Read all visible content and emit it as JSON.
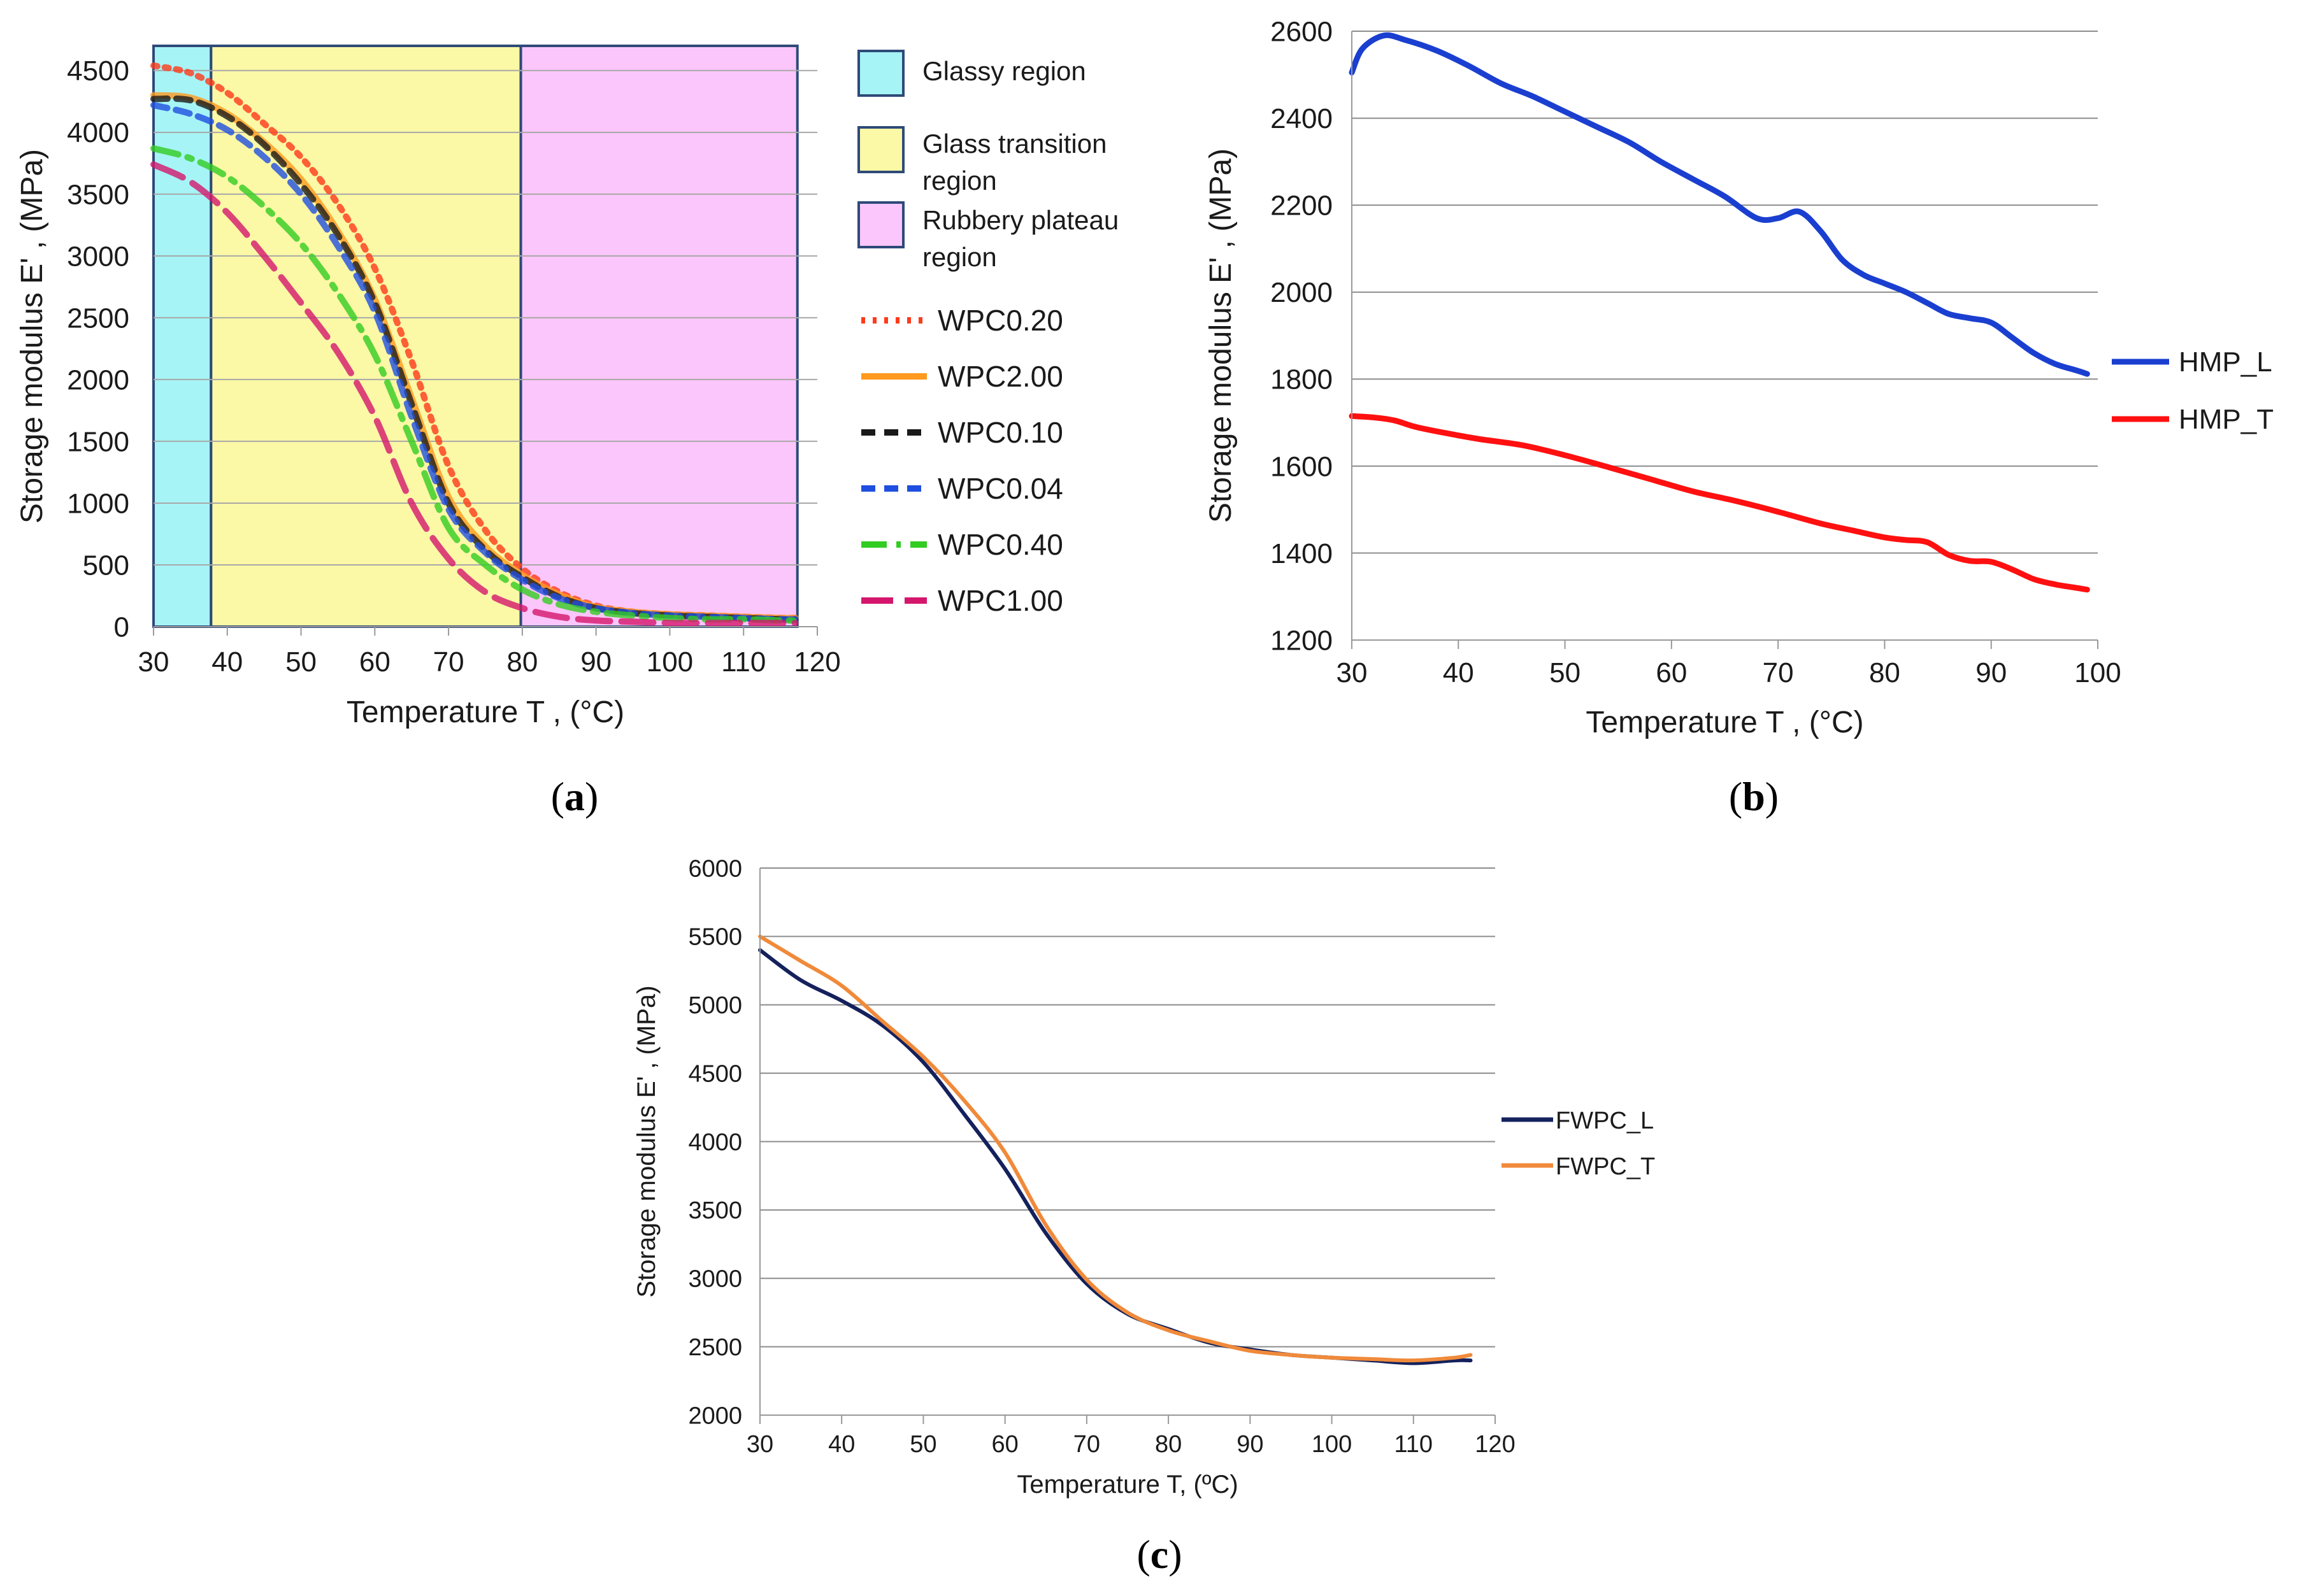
{
  "chart_data": [
    {
      "id": "a",
      "caption_letter": "a",
      "type": "line",
      "xlabel": "Temperature  T , (°C)",
      "ylabel": "Storage modulus E' , (MPa)",
      "xlim": [
        30,
        120
      ],
      "ylim": [
        0,
        4700
      ],
      "xticks": [
        30,
        40,
        50,
        60,
        70,
        80,
        90,
        100,
        110,
        120
      ],
      "yticks": [
        0,
        500,
        1000,
        1500,
        2000,
        2500,
        3000,
        3500,
        4000,
        4500
      ],
      "grid": true,
      "regions": [
        {
          "name": "Glassy region",
          "from": 30,
          "to": 37.8,
          "color": "#a6f4f6"
        },
        {
          "name": "Glass transition region",
          "from": 37.8,
          "to": 79.8,
          "color": "#fbf8a6"
        },
        {
          "name": "Rubbery plateau region",
          "from": 79.8,
          "to": 117.3,
          "color": "#fbc6fb"
        }
      ],
      "legend_regions": [
        "Glassy region",
        "Glass transition\nregion",
        "Rubbery plateau\nregion"
      ],
      "series": [
        {
          "name": "WPC0.20",
          "color": "#ff3a1a",
          "dash": "dotted",
          "x": [
            30,
            35,
            40,
            45,
            50,
            55,
            60,
            65,
            70,
            75,
            80,
            85,
            90,
            95,
            100,
            105,
            110,
            115,
            117
          ],
          "y": [
            4540,
            4480,
            4320,
            4070,
            3800,
            3420,
            2900,
            2150,
            1300,
            780,
            470,
            280,
            170,
            120,
            100,
            90,
            80,
            70,
            70
          ]
        },
        {
          "name": "WPC2.00",
          "color": "#ff9a1e",
          "dash": "solid",
          "x": [
            30,
            35,
            40,
            45,
            50,
            55,
            60,
            65,
            70,
            75,
            80,
            85,
            90,
            95,
            100,
            105,
            110,
            115,
            117
          ],
          "y": [
            4300,
            4280,
            4150,
            3920,
            3620,
            3200,
            2650,
            1850,
            1050,
            650,
            420,
            260,
            160,
            120,
            100,
            90,
            80,
            70,
            70
          ]
        },
        {
          "name": "WPC0.10",
          "color": "#1a1a1a",
          "dash": "dashed",
          "x": [
            30,
            35,
            40,
            45,
            50,
            55,
            60,
            65,
            70,
            75,
            80,
            85,
            90,
            95,
            100,
            105,
            110,
            115,
            117
          ],
          "y": [
            4270,
            4260,
            4130,
            3900,
            3580,
            3170,
            2620,
            1800,
            1000,
            620,
            400,
            240,
            150,
            110,
            90,
            80,
            70,
            60,
            60
          ]
        },
        {
          "name": "WPC0.04",
          "color": "#1f4fe0",
          "dash": "dashed",
          "x": [
            30,
            35,
            40,
            45,
            50,
            55,
            60,
            65,
            70,
            75,
            80,
            85,
            90,
            95,
            100,
            105,
            110,
            115,
            117
          ],
          "y": [
            4220,
            4150,
            4020,
            3800,
            3500,
            3080,
            2550,
            1700,
            950,
            600,
            380,
            230,
            150,
            110,
            90,
            80,
            70,
            60,
            60
          ]
        },
        {
          "name": "WPC0.40",
          "color": "#33cc22",
          "dash": "dashdot",
          "x": [
            30,
            35,
            40,
            45,
            50,
            55,
            60,
            65,
            70,
            75,
            80,
            85,
            90,
            95,
            100,
            105,
            110,
            115,
            117
          ],
          "y": [
            3870,
            3790,
            3640,
            3400,
            3100,
            2700,
            2200,
            1500,
            800,
            500,
            300,
            180,
            120,
            90,
            70,
            60,
            60,
            50,
            50
          ]
        },
        {
          "name": "WPC1.00",
          "color": "#d4176d",
          "dash": "longdash",
          "x": [
            30,
            35,
            40,
            45,
            50,
            55,
            60,
            65,
            70,
            75,
            80,
            85,
            90,
            95,
            100,
            105,
            110,
            115,
            117
          ],
          "y": [
            3740,
            3600,
            3350,
            3000,
            2620,
            2220,
            1700,
            1000,
            550,
            280,
            150,
            80,
            50,
            40,
            30,
            30,
            30,
            30,
            30
          ]
        }
      ]
    },
    {
      "id": "b",
      "caption_letter": "b",
      "type": "line",
      "xlabel": "Temperature T , (°C)",
      "ylabel": "Storage modulus E' , (MPa)",
      "xlim": [
        30,
        100
      ],
      "ylim": [
        1200,
        2600
      ],
      "xticks": [
        30,
        40,
        50,
        60,
        70,
        80,
        90,
        100
      ],
      "yticks": [
        1200,
        1400,
        1600,
        1800,
        2000,
        2200,
        2400,
        2600
      ],
      "grid": true,
      "series": [
        {
          "name": "HMP_L",
          "color": "#1a3fd0",
          "x": [
            30,
            31,
            33,
            35,
            38,
            41,
            44,
            47,
            50,
            53,
            56,
            59,
            62,
            65,
            68,
            70,
            72,
            74,
            76,
            78,
            80,
            82,
            84,
            86,
            88,
            90,
            92,
            94,
            96,
            98,
            99
          ],
          "y": [
            2505,
            2560,
            2590,
            2580,
            2555,
            2520,
            2480,
            2450,
            2415,
            2380,
            2345,
            2300,
            2260,
            2220,
            2170,
            2170,
            2185,
            2140,
            2075,
            2040,
            2020,
            2000,
            1975,
            1950,
            1940,
            1930,
            1895,
            1860,
            1835,
            1820,
            1812
          ]
        },
        {
          "name": "HMP_T",
          "color": "#ff1010",
          "x": [
            30,
            32,
            34,
            36,
            39,
            42,
            46,
            50,
            54,
            58,
            62,
            66,
            70,
            74,
            77,
            80,
            82,
            84,
            86,
            88,
            90,
            92,
            94,
            96,
            98,
            99
          ],
          "y": [
            1715,
            1712,
            1705,
            1690,
            1675,
            1662,
            1648,
            1625,
            1598,
            1570,
            1542,
            1520,
            1495,
            1468,
            1452,
            1436,
            1430,
            1425,
            1396,
            1382,
            1380,
            1362,
            1340,
            1328,
            1320,
            1316
          ]
        }
      ]
    },
    {
      "id": "c",
      "caption_letter": "c",
      "type": "line",
      "xlabel": "Temperature  T, (ºC)",
      "ylabel": "Storage modulus E' , (MPa)",
      "xlim": [
        30,
        120
      ],
      "ylim": [
        2000,
        6000
      ],
      "xticks": [
        30,
        40,
        50,
        60,
        70,
        80,
        90,
        100,
        110,
        120
      ],
      "yticks": [
        2000,
        2500,
        3000,
        3500,
        4000,
        4500,
        5000,
        5500,
        6000
      ],
      "grid": true,
      "series": [
        {
          "name": "FWPC_L",
          "color": "#14215c",
          "x": [
            30,
            35,
            40,
            45,
            50,
            55,
            60,
            65,
            70,
            75,
            80,
            85,
            90,
            95,
            100,
            105,
            110,
            115,
            117
          ],
          "y": [
            5400,
            5180,
            5030,
            4850,
            4580,
            4200,
            3800,
            3330,
            2960,
            2740,
            2630,
            2530,
            2480,
            2440,
            2420,
            2400,
            2380,
            2400,
            2400
          ]
        },
        {
          "name": "FWPC_T",
          "color": "#f08a3a",
          "x": [
            30,
            35,
            40,
            45,
            50,
            55,
            60,
            65,
            70,
            75,
            80,
            85,
            90,
            95,
            100,
            105,
            110,
            115,
            117
          ],
          "y": [
            5500,
            5320,
            5140,
            4880,
            4620,
            4300,
            3920,
            3390,
            2990,
            2750,
            2620,
            2540,
            2470,
            2440,
            2420,
            2410,
            2400,
            2420,
            2440
          ]
        }
      ]
    }
  ]
}
